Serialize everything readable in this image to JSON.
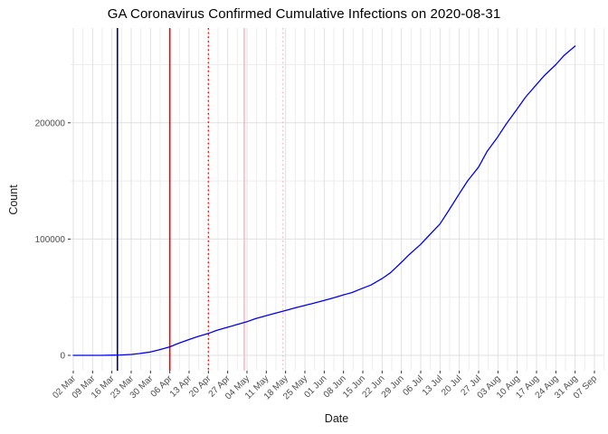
{
  "chart_data": {
    "type": "line",
    "title": "GA Coronavirus Confirmed Cumulative Infections on 2020-08-31",
    "xlabel": "Date",
    "ylabel": "Count",
    "grid": true,
    "legend": "none",
    "ylim": [
      0,
      280000
    ],
    "colors": {
      "series": "#0000EE",
      "grid_major": "#E0E0E0",
      "grid_minor": "#EDEDED",
      "tick_text": "#4D4D4D",
      "tick_mark": "#333333"
    },
    "y_ticks": [
      {
        "label": "0",
        "value": 0
      },
      {
        "label": "100000",
        "value": 100000
      },
      {
        "label": "200000",
        "value": 200000
      }
    ],
    "y_minor_ticks": [
      50000,
      150000,
      250000
    ],
    "x_ticks": [
      {
        "label": "02 Mar",
        "date": "2020-03-02"
      },
      {
        "label": "09 Mar",
        "date": "2020-03-09"
      },
      {
        "label": "16 Mar",
        "date": "2020-03-16"
      },
      {
        "label": "23 Mar",
        "date": "2020-03-23"
      },
      {
        "label": "30 Mar",
        "date": "2020-03-30"
      },
      {
        "label": "06 Apr",
        "date": "2020-04-06"
      },
      {
        "label": "13 Apr",
        "date": "2020-04-13"
      },
      {
        "label": "20 Apr",
        "date": "2020-04-20"
      },
      {
        "label": "27 Apr",
        "date": "2020-04-27"
      },
      {
        "label": "04 May",
        "date": "2020-05-04"
      },
      {
        "label": "11 May",
        "date": "2020-05-11"
      },
      {
        "label": "18 May",
        "date": "2020-05-18"
      },
      {
        "label": "25 May",
        "date": "2020-05-25"
      },
      {
        "label": "01 Jun",
        "date": "2020-06-01"
      },
      {
        "label": "08 Jun",
        "date": "2020-06-08"
      },
      {
        "label": "15 Jun",
        "date": "2020-06-15"
      },
      {
        "label": "22 Jun",
        "date": "2020-06-22"
      },
      {
        "label": "29 Jun",
        "date": "2020-06-29"
      },
      {
        "label": "06 Jul",
        "date": "2020-07-06"
      },
      {
        "label": "13 Jul",
        "date": "2020-07-13"
      },
      {
        "label": "20 Jul",
        "date": "2020-07-20"
      },
      {
        "label": "27 Jul",
        "date": "2020-07-27"
      },
      {
        "label": "03 Aug",
        "date": "2020-08-03"
      },
      {
        "label": "10 Aug",
        "date": "2020-08-10"
      },
      {
        "label": "17 Aug",
        "date": "2020-08-17"
      },
      {
        "label": "24 Aug",
        "date": "2020-08-24"
      },
      {
        "label": "31 Aug",
        "date": "2020-08-31"
      },
      {
        "label": "07 Sep",
        "date": "2020-09-07"
      }
    ],
    "vlines": [
      {
        "name": "event-line-navy",
        "date": "2020-03-18",
        "color": "#00008B",
        "style": "solid"
      },
      {
        "name": "event-line-red",
        "date": "2020-04-06",
        "color": "#FF0000",
        "style": "solid"
      },
      {
        "name": "event-line-red-dotted",
        "date": "2020-04-20",
        "color": "#FF0000",
        "style": "dotted"
      },
      {
        "name": "event-line-pink",
        "date": "2020-05-03",
        "color": "#FFB6C1",
        "style": "solid"
      },
      {
        "name": "event-line-pink-dotted",
        "date": "2020-05-17",
        "color": "#FFB6C1",
        "style": "dotted"
      }
    ],
    "series": [
      {
        "name": "cumulative-confirmed-infections",
        "color": "#0000EE",
        "points": [
          [
            "2020-03-02",
            2
          ],
          [
            "2020-03-06",
            10
          ],
          [
            "2020-03-09",
            20
          ],
          [
            "2020-03-12",
            31
          ],
          [
            "2020-03-16",
            120
          ],
          [
            "2020-03-19",
            290
          ],
          [
            "2020-03-23",
            800
          ],
          [
            "2020-03-26",
            1530
          ],
          [
            "2020-03-30",
            2900
          ],
          [
            "2020-04-02",
            4700
          ],
          [
            "2020-04-06",
            7300
          ],
          [
            "2020-04-09",
            10200
          ],
          [
            "2020-04-13",
            13600
          ],
          [
            "2020-04-16",
            16000
          ],
          [
            "2020-04-20",
            18800
          ],
          [
            "2020-04-23",
            21500
          ],
          [
            "2020-04-27",
            24200
          ],
          [
            "2020-04-30",
            26200
          ],
          [
            "2020-05-04",
            28900
          ],
          [
            "2020-05-07",
            31500
          ],
          [
            "2020-05-11",
            34100
          ],
          [
            "2020-05-14",
            36100
          ],
          [
            "2020-05-18",
            38600
          ],
          [
            "2020-05-21",
            40500
          ],
          [
            "2020-05-25",
            43000
          ],
          [
            "2020-05-28",
            44700
          ],
          [
            "2020-06-01",
            47200
          ],
          [
            "2020-06-04",
            49200
          ],
          [
            "2020-06-08",
            52000
          ],
          [
            "2020-06-11",
            54000
          ],
          [
            "2020-06-15",
            57800
          ],
          [
            "2020-06-18",
            60500
          ],
          [
            "2020-06-22",
            66000
          ],
          [
            "2020-06-25",
            71000
          ],
          [
            "2020-06-29",
            80000
          ],
          [
            "2020-07-02",
            87000
          ],
          [
            "2020-07-06",
            95500
          ],
          [
            "2020-07-09",
            103000
          ],
          [
            "2020-07-13",
            113000
          ],
          [
            "2020-07-16",
            124000
          ],
          [
            "2020-07-20",
            139000
          ],
          [
            "2020-07-23",
            150000
          ],
          [
            "2020-07-27",
            162000
          ],
          [
            "2020-07-30",
            175000
          ],
          [
            "2020-08-03",
            188000
          ],
          [
            "2020-08-06",
            199000
          ],
          [
            "2020-08-10",
            212000
          ],
          [
            "2020-08-13",
            222000
          ],
          [
            "2020-08-17",
            233000
          ],
          [
            "2020-08-20",
            241000
          ],
          [
            "2020-08-24",
            250000
          ],
          [
            "2020-08-27",
            258000
          ],
          [
            "2020-08-31",
            266000
          ]
        ]
      }
    ]
  }
}
